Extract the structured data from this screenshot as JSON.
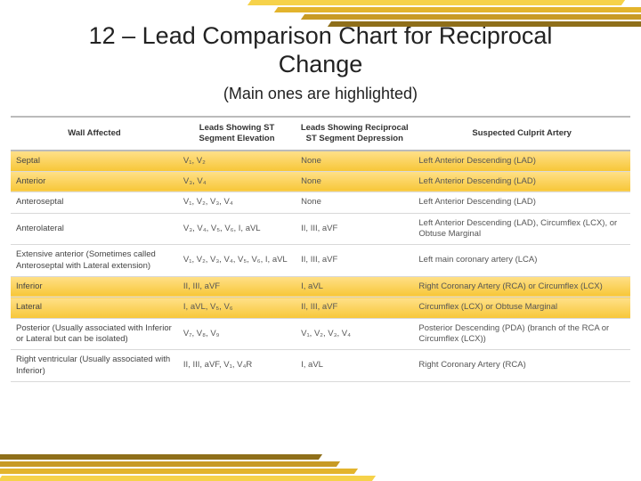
{
  "deco": {
    "colors": [
      "#f6d24a",
      "#e3b42c",
      "#c89a24",
      "#8f6f1a"
    ],
    "skew": -35
  },
  "title": "12 – Lead Comparison Chart for Reciprocal Change",
  "subtitle": "(Main ones are highlighted)",
  "table": {
    "columns": [
      "Wall Affected",
      "Leads Showing ST Segment Elevation",
      "Leads Showing Reciprocal ST Segment Depression",
      "Suspected Culprit Artery"
    ],
    "col_align": [
      "left",
      "left",
      "left",
      "left"
    ],
    "rows": [
      {
        "highlight": true,
        "cells": [
          "Septal",
          "V₁, V₂",
          "None",
          "Left Anterior Descending (LAD)"
        ]
      },
      {
        "highlight": true,
        "cells": [
          "Anterior",
          "V₃, V₄",
          "None",
          "Left Anterior Descending (LAD)"
        ]
      },
      {
        "highlight": false,
        "cells": [
          "Anteroseptal",
          "V₁, V₂, V₃, V₄",
          "None",
          "Left Anterior Descending (LAD)"
        ]
      },
      {
        "highlight": false,
        "cells": [
          "Anterolateral",
          "V₃, V₄, V₅, V₆, I, aVL",
          "II, III, aVF",
          "Left Anterior Descending (LAD), Circumflex (LCX), or Obtuse Marginal"
        ]
      },
      {
        "highlight": false,
        "cells": [
          "Extensive anterior (Sometimes called Anteroseptal with Lateral extension)",
          "V₁, V₂, V₃, V₄, V₅, V₆, I, aVL",
          "II, III, aVF",
          "Left main coronary artery (LCA)"
        ]
      },
      {
        "highlight": true,
        "cells": [
          "Inferior",
          "II, III, aVF",
          "I, aVL",
          "Right Coronary Artery (RCA) or Circumflex (LCX)"
        ]
      },
      {
        "highlight": true,
        "cells": [
          "Lateral",
          "I, aVL, V₅, V₆",
          "II, III, aVF",
          "Circumflex (LCX) or Obtuse Marginal"
        ]
      },
      {
        "highlight": false,
        "cells": [
          "Posterior (Usually associated with Inferior or Lateral but can be isolated)",
          "V₇, V₈, V₉",
          "V₁, V₂, V₃, V₄",
          "Posterior Descending (PDA) (branch of the RCA or Circumflex (LCX))"
        ]
      },
      {
        "highlight": false,
        "cells": [
          "Right ventricular (Usually associated with Inferior)",
          "II, III, aVF, V₁, V₄R",
          "I, aVL",
          "Right Coronary Artery (RCA)"
        ]
      }
    ],
    "header_border_color": "#bbbbbb",
    "row_border_color": "#d9d9d9",
    "highlight_gradient": [
      "#ffe089",
      "#f7c738"
    ],
    "font_size_pt": 9.5,
    "text_color": "#555555",
    "header_text_color": "#333333"
  },
  "background_color": "#ffffff"
}
